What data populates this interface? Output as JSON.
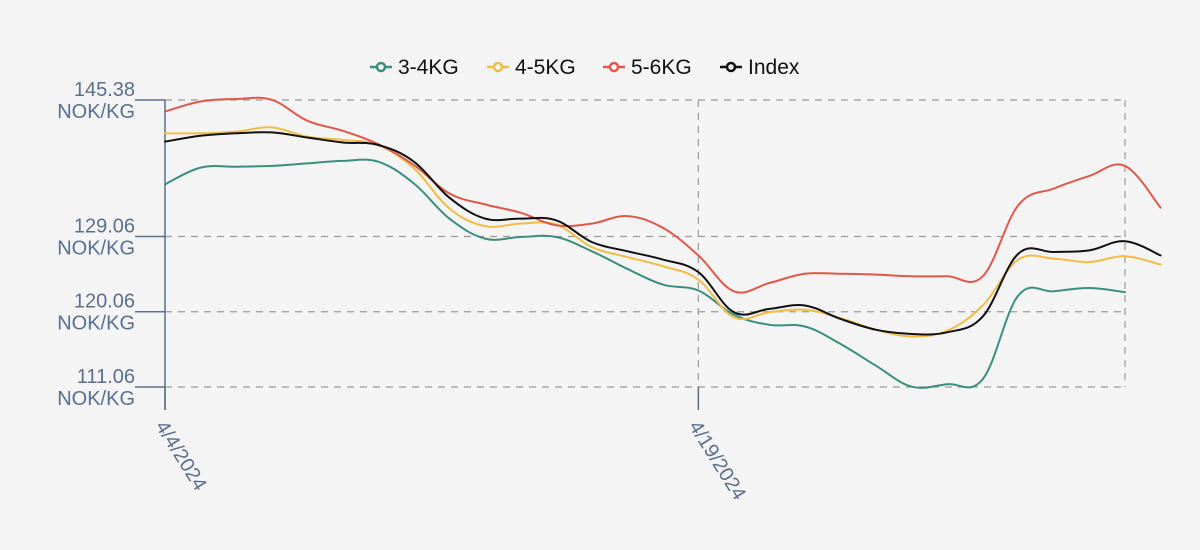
{
  "chart_data": {
    "type": "line",
    "title": "",
    "xlabel": "",
    "ylabel": "",
    "y_unit": "NOK/KG",
    "ylim": [
      111.06,
      145.38
    ],
    "y_ticks": [
      {
        "value": 145.38,
        "line1": "145.38",
        "line2": "NOK/KG"
      },
      {
        "value": 129.06,
        "line1": "129.06",
        "line2": "NOK/KG"
      },
      {
        "value": 120.06,
        "line1": "120.06",
        "line2": "NOK/KG"
      },
      {
        "value": 111.06,
        "line1": "111.06",
        "line2": "NOK/KG"
      }
    ],
    "x_start": "2024-04-04",
    "x_end": "2024-05-01",
    "x_ticks": [
      {
        "date": "2024-04-04",
        "label": "4/4/2024"
      },
      {
        "date": "2024-04-19",
        "label": "4/19/2024"
      }
    ],
    "grid": true,
    "legend_position": "top-center",
    "series": [
      {
        "name": "3-4KG",
        "color": "#3a8f7f",
        "points": [
          [
            "2024-04-04",
            135.3
          ],
          [
            "2024-04-05",
            137.3
          ],
          [
            "2024-04-06",
            137.4
          ],
          [
            "2024-04-07",
            137.5
          ],
          [
            "2024-04-08",
            137.8
          ],
          [
            "2024-04-09",
            138.1
          ],
          [
            "2024-04-10",
            138.0
          ],
          [
            "2024-04-11",
            135.4
          ],
          [
            "2024-04-12",
            131.2
          ],
          [
            "2024-04-13",
            128.8
          ],
          [
            "2024-04-14",
            129.0
          ],
          [
            "2024-04-15",
            129.0
          ],
          [
            "2024-04-16",
            127.3
          ],
          [
            "2024-04-17",
            125.2
          ],
          [
            "2024-04-18",
            123.3
          ],
          [
            "2024-04-19",
            122.6
          ],
          [
            "2024-04-20",
            119.7
          ],
          [
            "2024-04-21",
            118.5
          ],
          [
            "2024-04-22",
            118.3
          ],
          [
            "2024-04-23",
            116.2
          ],
          [
            "2024-04-24",
            113.6
          ],
          [
            "2024-04-25",
            111.1
          ],
          [
            "2024-04-26",
            111.4
          ],
          [
            "2024-04-27",
            112.0
          ],
          [
            "2024-04-28",
            122.0
          ],
          [
            "2024-04-29",
            122.5
          ],
          [
            "2024-04-30",
            122.9
          ],
          [
            "2024-05-01",
            122.4
          ]
        ]
      },
      {
        "name": "4-5KG",
        "color": "#f0bd45",
        "points": [
          [
            "2024-04-04",
            141.4
          ],
          [
            "2024-04-05",
            141.4
          ],
          [
            "2024-04-06",
            141.6
          ],
          [
            "2024-04-07",
            142.1
          ],
          [
            "2024-04-08",
            141.0
          ],
          [
            "2024-04-09",
            140.6
          ],
          [
            "2024-04-10",
            140.0
          ],
          [
            "2024-04-11",
            137.2
          ],
          [
            "2024-04-12",
            132.4
          ],
          [
            "2024-04-13",
            130.3
          ],
          [
            "2024-04-14",
            130.6
          ],
          [
            "2024-04-15",
            130.5
          ],
          [
            "2024-04-16",
            127.8
          ],
          [
            "2024-04-17",
            126.6
          ],
          [
            "2024-04-18",
            125.5
          ],
          [
            "2024-04-19",
            123.9
          ],
          [
            "2024-04-20",
            119.4
          ],
          [
            "2024-04-21",
            120.0
          ],
          [
            "2024-04-22",
            120.3
          ],
          [
            "2024-04-23",
            119.3
          ],
          [
            "2024-04-24",
            117.9
          ],
          [
            "2024-04-25",
            117.1
          ],
          [
            "2024-04-26",
            117.8
          ],
          [
            "2024-04-27",
            120.8
          ],
          [
            "2024-04-28",
            126.3
          ],
          [
            "2024-04-29",
            126.4
          ],
          [
            "2024-04-30",
            126.0
          ],
          [
            "2024-05-01",
            126.7
          ],
          [
            "2024-05-02",
            125.7
          ]
        ]
      },
      {
        "name": "5-6KG",
        "color": "#e0584a",
        "points": [
          [
            "2024-04-04",
            144.0
          ],
          [
            "2024-04-05",
            145.2
          ],
          [
            "2024-04-06",
            145.5
          ],
          [
            "2024-04-07",
            145.4
          ],
          [
            "2024-04-08",
            142.9
          ],
          [
            "2024-04-09",
            141.7
          ],
          [
            "2024-04-10",
            140.1
          ],
          [
            "2024-04-11",
            137.6
          ],
          [
            "2024-04-12",
            134.2
          ],
          [
            "2024-04-13",
            132.9
          ],
          [
            "2024-04-14",
            131.9
          ],
          [
            "2024-04-15",
            130.4
          ],
          [
            "2024-04-16",
            130.6
          ],
          [
            "2024-04-17",
            131.5
          ],
          [
            "2024-04-18",
            130.1
          ],
          [
            "2024-04-19",
            126.8
          ],
          [
            "2024-04-20",
            122.5
          ],
          [
            "2024-04-21",
            123.5
          ],
          [
            "2024-04-22",
            124.6
          ],
          [
            "2024-04-23",
            124.6
          ],
          [
            "2024-04-24",
            124.5
          ],
          [
            "2024-04-25",
            124.3
          ],
          [
            "2024-04-26",
            124.3
          ],
          [
            "2024-04-27",
            124.3
          ],
          [
            "2024-04-28",
            132.8
          ],
          [
            "2024-04-29",
            134.8
          ],
          [
            "2024-04-30",
            136.3
          ],
          [
            "2024-05-01",
            137.5
          ],
          [
            "2024-05-02",
            132.5
          ]
        ]
      },
      {
        "name": "Index",
        "color": "#111111",
        "points": [
          [
            "2024-04-04",
            140.4
          ],
          [
            "2024-04-05",
            141.1
          ],
          [
            "2024-04-06",
            141.4
          ],
          [
            "2024-04-07",
            141.5
          ],
          [
            "2024-04-08",
            140.9
          ],
          [
            "2024-04-09",
            140.3
          ],
          [
            "2024-04-10",
            140.0
          ],
          [
            "2024-04-11",
            138.0
          ],
          [
            "2024-04-12",
            133.7
          ],
          [
            "2024-04-13",
            131.2
          ],
          [
            "2024-04-14",
            131.2
          ],
          [
            "2024-04-15",
            131.0
          ],
          [
            "2024-04-16",
            128.4
          ],
          [
            "2024-04-17",
            127.3
          ],
          [
            "2024-04-18",
            126.3
          ],
          [
            "2024-04-19",
            124.8
          ],
          [
            "2024-04-20",
            120.0
          ],
          [
            "2024-04-21",
            120.4
          ],
          [
            "2024-04-22",
            120.8
          ],
          [
            "2024-04-23",
            119.2
          ],
          [
            "2024-04-24",
            117.9
          ],
          [
            "2024-04-25",
            117.4
          ],
          [
            "2024-04-26",
            117.6
          ],
          [
            "2024-04-27",
            119.5
          ],
          [
            "2024-04-28",
            127.0
          ],
          [
            "2024-04-29",
            127.2
          ],
          [
            "2024-04-30",
            127.4
          ],
          [
            "2024-05-01",
            128.5
          ],
          [
            "2024-05-02",
            126.8
          ]
        ]
      }
    ]
  }
}
